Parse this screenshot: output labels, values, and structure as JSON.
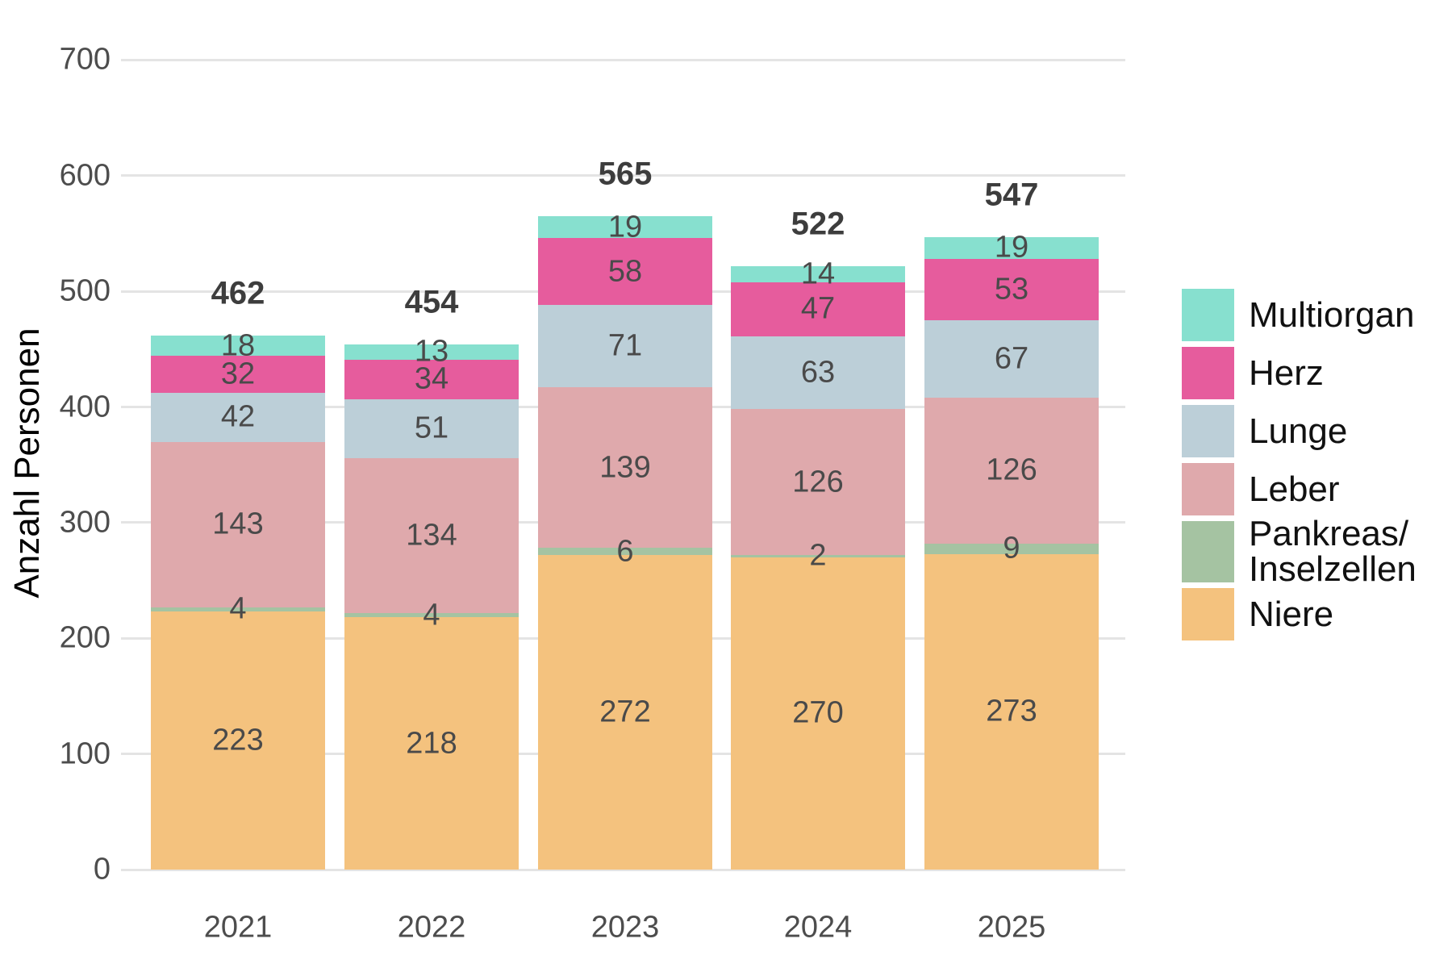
{
  "chart_data": {
    "type": "bar",
    "stacked": true,
    "title": "",
    "xlabel": "",
    "ylabel": "Anzahl Personen",
    "categories": [
      "2021",
      "2022",
      "2023",
      "2024",
      "2025"
    ],
    "series": [
      {
        "name": "Niere",
        "color": "#F4C27E",
        "values": [
          223,
          218,
          272,
          270,
          273
        ]
      },
      {
        "name": "Pankreas/Inselzellen",
        "color": "#A5C3A2",
        "values": [
          4,
          4,
          6,
          2,
          9
        ]
      },
      {
        "name": "Leber",
        "color": "#DFA9AC",
        "values": [
          143,
          134,
          139,
          126,
          126
        ]
      },
      {
        "name": "Lunge",
        "color": "#BCCFD8",
        "values": [
          42,
          51,
          71,
          63,
          67
        ]
      },
      {
        "name": "Herz",
        "color": "#E65C9D",
        "values": [
          32,
          34,
          58,
          47,
          53
        ]
      },
      {
        "name": "Multiorgan",
        "color": "#87E0CF",
        "values": [
          18,
          13,
          19,
          14,
          19
        ]
      }
    ],
    "totals": [
      462,
      454,
      565,
      522,
      547
    ],
    "y_ticks": [
      0,
      100,
      200,
      300,
      400,
      500,
      600,
      700
    ],
    "ylim": [
      0,
      700
    ],
    "grid": true,
    "legend_position": "right",
    "legend": [
      {
        "series": "Multiorgan",
        "lines": [
          "Multiorgan"
        ]
      },
      {
        "series": "Herz",
        "lines": [
          "Herz"
        ]
      },
      {
        "series": "Lunge",
        "lines": [
          "Lunge"
        ]
      },
      {
        "series": "Leber",
        "lines": [
          "Leber"
        ]
      },
      {
        "series": "Pankreas/Inselzellen",
        "lines": [
          "Pankreas/",
          "Inselzellen"
        ]
      },
      {
        "series": "Niere",
        "lines": [
          "Niere"
        ]
      }
    ]
  }
}
